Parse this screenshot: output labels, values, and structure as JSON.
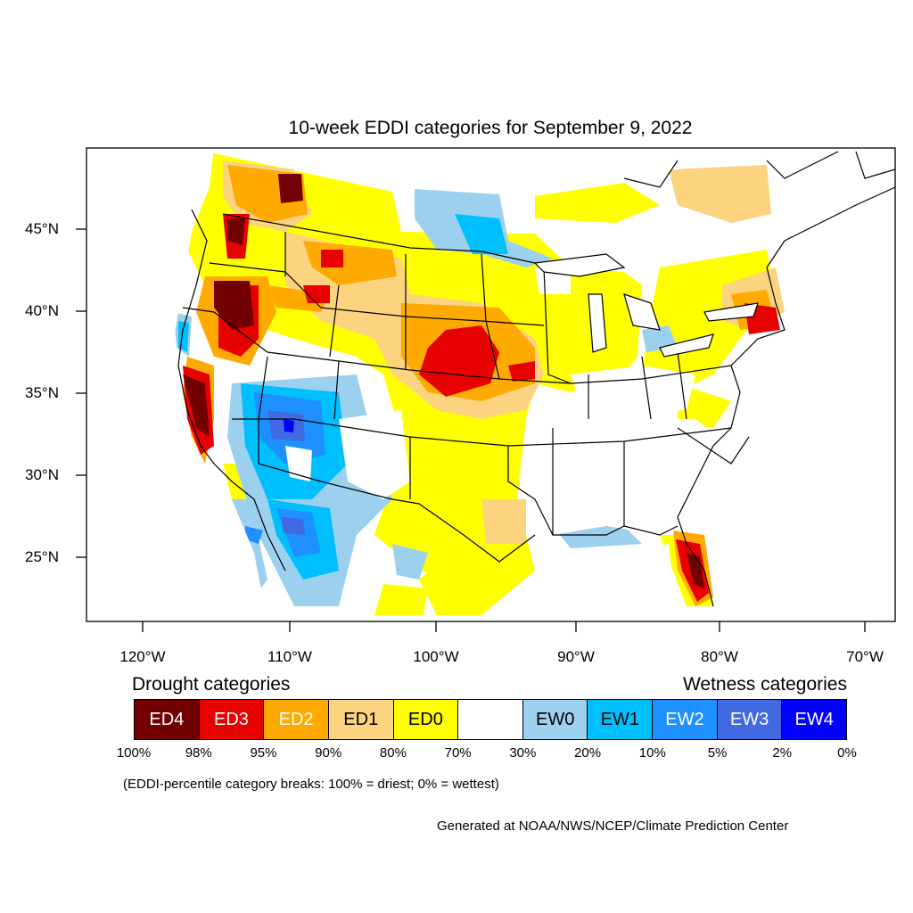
{
  "title": "10-week EDDI categories for September 9, 2022",
  "lat_labels": [
    "45°N",
    "40°N",
    "35°N",
    "30°N",
    "25°N"
  ],
  "lon_labels": [
    "120°W",
    "110°W",
    "100°W",
    "90°W",
    "80°W",
    "70°W"
  ],
  "legend": {
    "drought_heading": "Drought categories",
    "wetness_heading": "Wetness categories",
    "categories": [
      {
        "label": "ED4",
        "color": "#730000",
        "text_color": "#ffffff"
      },
      {
        "label": "ED3",
        "color": "#e60000",
        "text_color": "#ffffff"
      },
      {
        "label": "ED2",
        "color": "#ffaa00",
        "text_color": "#ffffff"
      },
      {
        "label": "ED1",
        "color": "#fcd37f",
        "text_color": "#000000"
      },
      {
        "label": "ED0",
        "color": "#ffff00",
        "text_color": "#000000"
      },
      {
        "label": "",
        "color": "#ffffff",
        "text_color": "#000000"
      },
      {
        "label": "EW0",
        "color": "#9bd0ef",
        "text_color": "#000000"
      },
      {
        "label": "EW1",
        "color": "#00bfff",
        "text_color": "#000000"
      },
      {
        "label": "EW2",
        "color": "#1e90ff",
        "text_color": "#ffffff"
      },
      {
        "label": "EW3",
        "color": "#4169e1",
        "text_color": "#ffffff"
      },
      {
        "label": "EW4",
        "color": "#0000ff",
        "text_color": "#ffffff"
      }
    ],
    "percentiles": [
      "100%",
      "98%",
      "95%",
      "90%",
      "80%",
      "70%",
      "30%",
      "20%",
      "10%",
      "5%",
      "2%",
      "0%"
    ]
  },
  "breaks_note": "(EDDI-percentile category breaks: 100% = driest; 0% = wettest)",
  "credit": "Generated at NOAA/NWS/NCEP/Climate Prediction Center"
}
